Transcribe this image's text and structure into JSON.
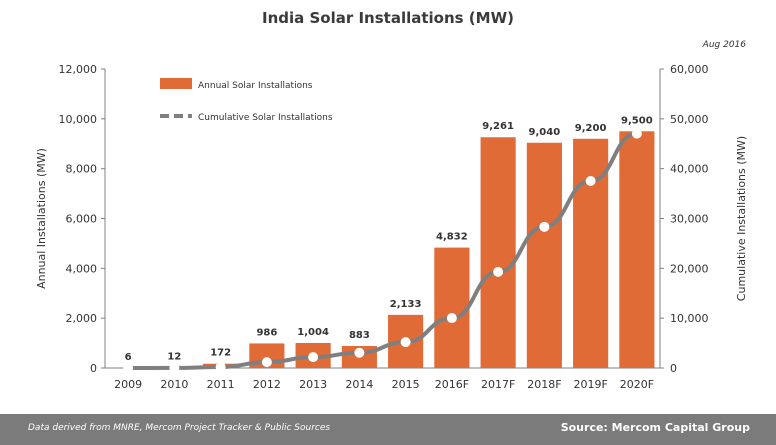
{
  "header": {
    "title": "India Solar Installations (MW)",
    "date_note": "Aug 2016"
  },
  "footer": {
    "left_text": "Data derived from MNRE, Mercom Project Tracker & Public Sources",
    "right_text": "Source: Mercom Capital Group"
  },
  "colors": {
    "bar": "#e06b37",
    "line": "#7f7f7f",
    "marker": "#ffffff",
    "footer": "#7b7b7b"
  },
  "chart_data": {
    "type": "bar",
    "title": "India Solar Installations (MW)",
    "categories": [
      "2009",
      "2010",
      "2011",
      "2012",
      "2013",
      "2014",
      "2015",
      "2016F",
      "2017F",
      "2018F",
      "2019F",
      "2020F"
    ],
    "series": [
      {
        "name": "Annual Solar Installations",
        "type": "bar",
        "axis": "left",
        "values": [
          6,
          12,
          172,
          986,
          1004,
          883,
          2133,
          4832,
          9261,
          9040,
          9200,
          9500
        ],
        "labels": [
          "6",
          "12",
          "172",
          "986",
          "1,004",
          "883",
          "2,133",
          "4,832",
          "9,261",
          "9,040",
          "9,200",
          "9,500"
        ]
      },
      {
        "name": "Cumulative Solar Installations",
        "type": "line",
        "style": "dashed-legend",
        "axis": "right",
        "values": [
          6,
          18,
          190,
          1176,
          2180,
          3063,
          5196,
          10028,
          19289,
          28329,
          37529,
          47029
        ]
      }
    ],
    "ylabel": "Annual Installations (MW)",
    "y2label": "Cumulative Installations (MW)",
    "ylim": [
      0,
      12000
    ],
    "y2lim": [
      0,
      60000
    ],
    "yticks": [
      "0",
      "2,000",
      "4,000",
      "6,000",
      "8,000",
      "10,000",
      "12,000"
    ],
    "y2ticks": [
      "0",
      "10,000",
      "20,000",
      "30,000",
      "40,000",
      "50,000",
      "60,000"
    ],
    "legend_placement": "top-left",
    "grid": false
  }
}
